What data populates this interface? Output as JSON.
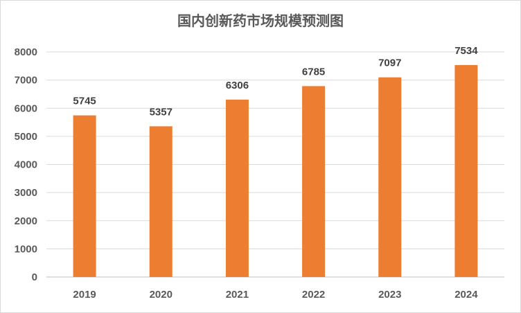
{
  "chart_data": {
    "type": "bar",
    "title": "国内创新药市场规模预测图",
    "xlabel": "",
    "ylabel": "",
    "categories": [
      "2019",
      "2020",
      "2021",
      "2022",
      "2023",
      "2024"
    ],
    "values": [
      5745,
      5357,
      6306,
      6785,
      7097,
      7534
    ],
    "ylim": [
      0,
      8000
    ],
    "yticks": [
      0,
      1000,
      2000,
      3000,
      4000,
      5000,
      6000,
      7000,
      8000
    ],
    "grid": true,
    "legend": "none",
    "colors": {
      "bar": "#ed7d31",
      "grid": "#d9d9d9",
      "axis": "#bfbfbf"
    }
  }
}
